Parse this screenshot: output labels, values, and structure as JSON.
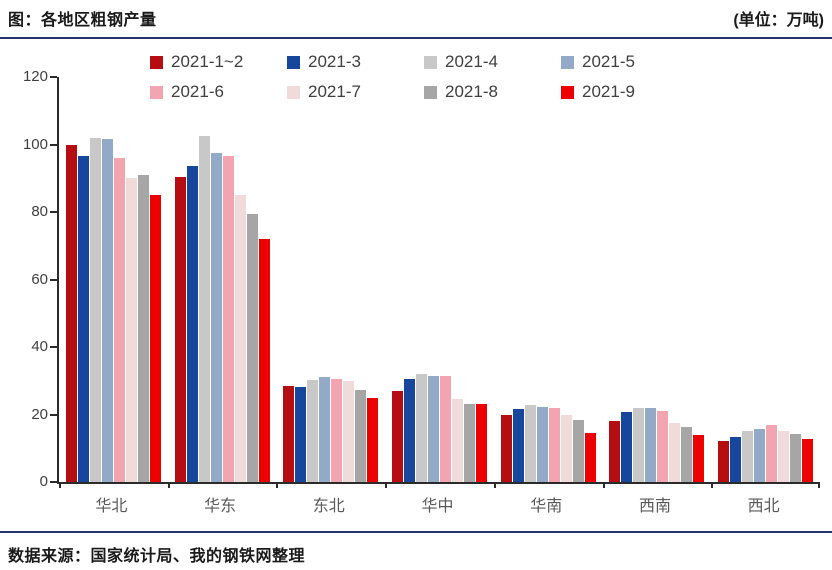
{
  "header": {
    "title": "图：各地区粗钢产量",
    "unit": "(单位：万吨)"
  },
  "footer": {
    "source": "数据来源：国家统计局、我的钢铁网整理"
  },
  "colors": {
    "rule": "#24356B",
    "axis": "#2b2b2b",
    "tick_label": "#404040",
    "x_label": "#595959"
  },
  "chart_data": {
    "type": "bar",
    "title": "各地区粗钢产量",
    "unit": "万吨",
    "categories": [
      "华北",
      "华东",
      "东北",
      "华中",
      "华南",
      "西南",
      "西北"
    ],
    "series": [
      {
        "name": "2021-1~2",
        "color": "#B50D12",
        "values": [
          100,
          90.5,
          28.5,
          27,
          20,
          18,
          12.3
        ]
      },
      {
        "name": "2021-3",
        "color": "#17479D",
        "values": [
          96.5,
          93.5,
          28.2,
          30.5,
          21.5,
          20.8,
          13.3
        ]
      },
      {
        "name": "2021-4",
        "color": "#C8C8C8",
        "values": [
          102,
          102.5,
          30.2,
          32,
          22.8,
          22,
          15
        ]
      },
      {
        "name": "2021-5",
        "color": "#92A9C7",
        "values": [
          101.5,
          97.5,
          31,
          31.5,
          22.3,
          21.8,
          15.6
        ]
      },
      {
        "name": "2021-6",
        "color": "#F2A5B1",
        "values": [
          96,
          96.5,
          30.5,
          31.3,
          22,
          21.2,
          16.8
        ]
      },
      {
        "name": "2021-7",
        "color": "#F0DBDA",
        "values": [
          90,
          85,
          29.8,
          24.5,
          19.8,
          17.5,
          15
        ]
      },
      {
        "name": "2021-8",
        "color": "#A6A6A6",
        "values": [
          91,
          79.5,
          27.3,
          23,
          18.3,
          16.3,
          14.3
        ]
      },
      {
        "name": "2021-9",
        "color": "#EC0000",
        "values": [
          85,
          72,
          25,
          23.2,
          14.5,
          14,
          12.8
        ]
      }
    ],
    "ylim": [
      0,
      120
    ],
    "yticks": [
      0,
      20,
      40,
      60,
      80,
      100,
      120
    ],
    "grid": false,
    "legend_position": "top"
  }
}
